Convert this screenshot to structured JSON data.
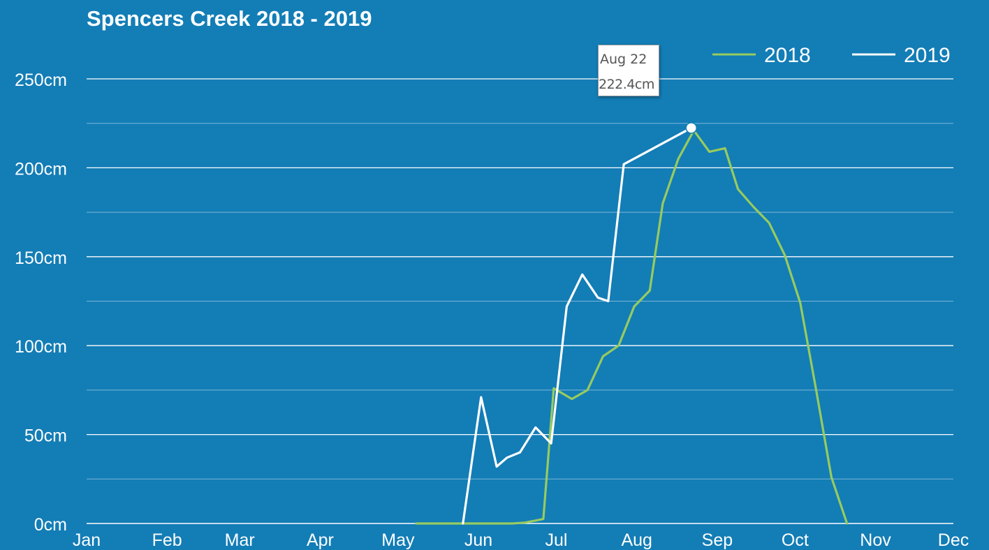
{
  "chart_data": {
    "type": "line",
    "title": "Spencers Creek 2018 - 2019",
    "xlabel": "",
    "ylabel": "",
    "x_unit": "day of year",
    "xlim": [
      1,
      335
    ],
    "ylim": [
      0,
      250
    ],
    "y_ticks": [
      {
        "value": 0,
        "label": "0cm"
      },
      {
        "value": 50,
        "label": "50cm"
      },
      {
        "value": 100,
        "label": "100cm"
      },
      {
        "value": 150,
        "label": "150cm"
      },
      {
        "value": 200,
        "label": "200cm"
      },
      {
        "value": 250,
        "label": "250cm"
      }
    ],
    "minor_y_gridlines": [
      25,
      75,
      125,
      175,
      225
    ],
    "x_ticks": [
      {
        "value": 1,
        "label": "Jan"
      },
      {
        "value": 32,
        "label": "Feb"
      },
      {
        "value": 60,
        "label": "Mar"
      },
      {
        "value": 91,
        "label": "Apr"
      },
      {
        "value": 121,
        "label": "May"
      },
      {
        "value": 152,
        "label": "Jun"
      },
      {
        "value": 182,
        "label": "Jul"
      },
      {
        "value": 213,
        "label": "Aug"
      },
      {
        "value": 244,
        "label": "Sep"
      },
      {
        "value": 274,
        "label": "Oct"
      },
      {
        "value": 305,
        "label": "Nov"
      },
      {
        "value": 335,
        "label": "Dec"
      }
    ],
    "grid": true,
    "legend_position": "top-right",
    "series": [
      {
        "name": "2018",
        "color": "#97cb5f",
        "points": [
          [
            128,
            0
          ],
          [
            165,
            0
          ],
          [
            170,
            0.5
          ],
          [
            177,
            2.5
          ],
          [
            181,
            76
          ],
          [
            188,
            70
          ],
          [
            194,
            75
          ],
          [
            200,
            94
          ],
          [
            206,
            100
          ],
          [
            212,
            122
          ],
          [
            218,
            131
          ],
          [
            223,
            180
          ],
          [
            229,
            205
          ],
          [
            235,
            221
          ],
          [
            241,
            209
          ],
          [
            247,
            211
          ],
          [
            252,
            188
          ],
          [
            258,
            178
          ],
          [
            264,
            169
          ],
          [
            270,
            151
          ],
          [
            276,
            124
          ],
          [
            282,
            76
          ],
          [
            288,
            26
          ],
          [
            294,
            0
          ]
        ]
      },
      {
        "name": "2019",
        "color": "#ffffff",
        "points": [
          [
            146,
            0
          ],
          [
            153,
            71
          ],
          [
            159,
            32
          ],
          [
            163,
            37
          ],
          [
            168,
            40
          ],
          [
            174,
            54
          ],
          [
            180,
            45
          ],
          [
            186,
            122
          ],
          [
            192,
            140
          ],
          [
            198,
            127
          ],
          [
            202,
            125
          ],
          [
            208,
            202
          ],
          [
            234,
            222.4
          ]
        ]
      }
    ],
    "highlight": {
      "series": "2019",
      "x": 234,
      "y": 222.4,
      "date_label": "Aug 22",
      "value_label": "222.4cm"
    }
  }
}
